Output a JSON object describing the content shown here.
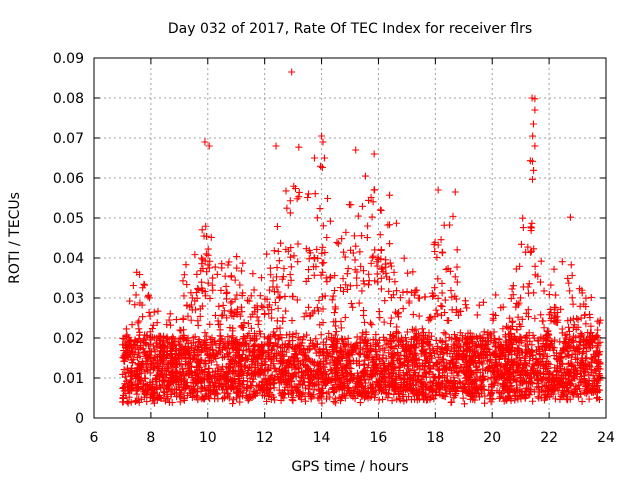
{
  "chart_data": {
    "type": "scatter",
    "title": "Day 032 of 2017, Rate Of TEC Index for receiver flrs",
    "xlabel": "GPS time / hours",
    "ylabel": "ROTI / TECUs",
    "xlim": [
      6,
      24
    ],
    "ylim": [
      0,
      0.09
    ],
    "xticks": [
      6,
      8,
      10,
      12,
      14,
      16,
      18,
      20,
      22,
      24
    ],
    "yticks": [
      0,
      0.01,
      0.02,
      0.03,
      0.04,
      0.05,
      0.06,
      0.07,
      0.08,
      0.09
    ],
    "xtick_labels": [
      "6",
      "8",
      "10",
      "12",
      "14",
      "16",
      "18",
      "20",
      "22",
      "24"
    ],
    "ytick_labels": [
      "0",
      "0.01",
      "0.02",
      "0.03",
      "0.04",
      "0.05",
      "0.06",
      "0.07",
      "0.08",
      "0.09"
    ],
    "grid": true,
    "marker": "+",
    "color": "#ff0000",
    "x_range_observed": [
      7.0,
      23.8
    ],
    "baseline_band": [
      0.005,
      0.02
    ],
    "envelope": [
      {
        "x": 7.0,
        "y": 0.022
      },
      {
        "x": 7.5,
        "y": 0.036
      },
      {
        "x": 8.0,
        "y": 0.03
      },
      {
        "x": 8.5,
        "y": 0.025
      },
      {
        "x": 9.0,
        "y": 0.03
      },
      {
        "x": 9.5,
        "y": 0.048
      },
      {
        "x": 9.9,
        "y": 0.066
      },
      {
        "x": 10.3,
        "y": 0.04
      },
      {
        "x": 11.0,
        "y": 0.04
      },
      {
        "x": 11.5,
        "y": 0.036
      },
      {
        "x": 12.0,
        "y": 0.045
      },
      {
        "x": 12.5,
        "y": 0.055
      },
      {
        "x": 13.0,
        "y": 0.06
      },
      {
        "x": 13.5,
        "y": 0.058
      },
      {
        "x": 14.0,
        "y": 0.065
      },
      {
        "x": 14.5,
        "y": 0.045
      },
      {
        "x": 15.0,
        "y": 0.055
      },
      {
        "x": 15.5,
        "y": 0.063
      },
      {
        "x": 16.0,
        "y": 0.06
      },
      {
        "x": 16.5,
        "y": 0.056
      },
      {
        "x": 17.0,
        "y": 0.045
      },
      {
        "x": 17.5,
        "y": 0.03
      },
      {
        "x": 18.0,
        "y": 0.045
      },
      {
        "x": 18.6,
        "y": 0.055
      },
      {
        "x": 19.0,
        "y": 0.03
      },
      {
        "x": 19.5,
        "y": 0.028
      },
      {
        "x": 20.0,
        "y": 0.032
      },
      {
        "x": 20.5,
        "y": 0.028
      },
      {
        "x": 21.0,
        "y": 0.045
      },
      {
        "x": 21.4,
        "y": 0.075
      },
      {
        "x": 21.8,
        "y": 0.035
      },
      {
        "x": 22.2,
        "y": 0.04
      },
      {
        "x": 22.8,
        "y": 0.04
      },
      {
        "x": 23.2,
        "y": 0.036
      },
      {
        "x": 23.8,
        "y": 0.025
      }
    ],
    "notable_points": [
      {
        "x": 12.95,
        "y": 0.0865
      },
      {
        "x": 21.4,
        "y": 0.08
      },
      {
        "x": 21.5,
        "y": 0.0798
      },
      {
        "x": 21.5,
        "y": 0.077
      },
      {
        "x": 21.45,
        "y": 0.0735
      },
      {
        "x": 14.0,
        "y": 0.0705
      },
      {
        "x": 14.05,
        "y": 0.069
      },
      {
        "x": 9.9,
        "y": 0.069
      },
      {
        "x": 10.05,
        "y": 0.068
      },
      {
        "x": 12.4,
        "y": 0.068
      },
      {
        "x": 13.2,
        "y": 0.0677
      },
      {
        "x": 15.2,
        "y": 0.067
      },
      {
        "x": 15.85,
        "y": 0.066
      },
      {
        "x": 13.75,
        "y": 0.065
      },
      {
        "x": 14.1,
        "y": 0.065
      },
      {
        "x": 21.5,
        "y": 0.068
      },
      {
        "x": 22.75,
        "y": 0.0502
      },
      {
        "x": 18.7,
        "y": 0.0565
      },
      {
        "x": 18.1,
        "y": 0.057
      }
    ]
  }
}
